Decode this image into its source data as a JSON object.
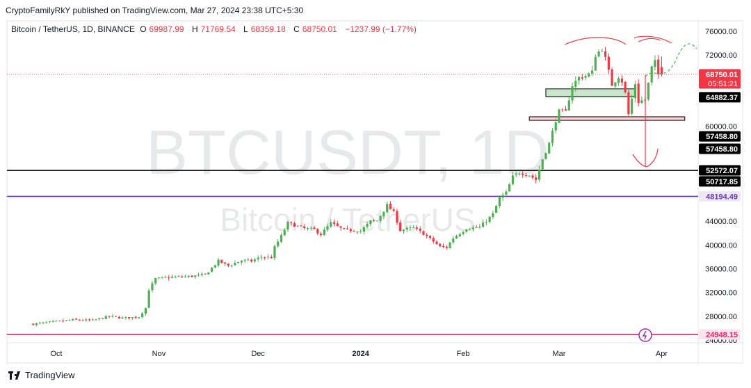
{
  "header": {
    "published": "CryptoFamilyRkY published on TradingView.com, Mar 27, 2024 23:38 UTC+5:30"
  },
  "legend": {
    "symbol": "Bitcoin / TetherUS, 1D, BINANCE",
    "o_label": "O",
    "o": "69987.99",
    "h_label": "H",
    "h": "71769.54",
    "l_label": "L",
    "l": "68359.18",
    "c_label": "C",
    "c": "68750.01",
    "change": "−1237.99 (−1.77%)"
  },
  "watermark": {
    "big": "BTCUSDT, 1D",
    "small": "Bitcoin / TetherUS"
  },
  "footer": {
    "brand": "TradingView"
  },
  "colors": {
    "up": "#26a69a",
    "candle_up": "#4caf50",
    "down": "#f23645",
    "purple": "#673ab7",
    "pink": "#e91e63",
    "black": "#000000"
  },
  "chart_data": {
    "type": "candlestick",
    "ylim": [
      22900,
      78000
    ],
    "y_ticks": [
      "76000.00",
      "72000.00",
      "60000.00",
      "44000.00",
      "40000.00",
      "36000.00",
      "32000.00",
      "28000.00",
      "24000.00"
    ],
    "x_ticks": [
      {
        "label": "Oct",
        "day": 0
      },
      {
        "label": "Nov",
        "day": 31
      },
      {
        "label": "Dec",
        "day": 61
      },
      {
        "label": "2024",
        "day": 92,
        "bold": true
      },
      {
        "label": "Feb",
        "day": 123
      },
      {
        "label": "Mar",
        "day": 152
      },
      {
        "label": "Apr",
        "day": 183
      }
    ],
    "price_tags": [
      {
        "price": 68750.01,
        "text": "68750.01",
        "text2": "05:51:21",
        "style": "red"
      },
      {
        "price": 64882.37,
        "text": "64882.37",
        "style": "black"
      },
      {
        "price": 58300,
        "text": "57458.80",
        "style": "black"
      },
      {
        "price": 56200,
        "text": "57458.80",
        "style": "black"
      },
      {
        "price": 52572.07,
        "text": "52572.07",
        "style": "black"
      },
      {
        "price": 50717.85,
        "text": "50717.85",
        "style": "black"
      },
      {
        "price": 48194.49,
        "text": "48194.49",
        "style": "purple"
      },
      {
        "price": 24948.15,
        "text": "24948.15",
        "style": "pink"
      }
    ],
    "hlines": [
      {
        "price": 52572.07,
        "color": "#000000",
        "width": 1.6
      },
      {
        "price": 48194.49,
        "color": "#673ab7",
        "width": 1.6
      },
      {
        "price": 24948.15,
        "color": "#e91e63",
        "width": 1.6
      }
    ],
    "last_price_line": 68750.01,
    "zones": [
      {
        "day_from": 148,
        "day_to": 175,
        "top": 66300,
        "bottom": 65000,
        "fill": "#c8e6c9",
        "stroke": "#000000"
      },
      {
        "day_from": 143,
        "day_to": 190,
        "top": 61600,
        "bottom": 61000,
        "fill": "#ffcdd2",
        "stroke": "#000000"
      }
    ],
    "path_anchors": [
      [
        -7,
        26700
      ],
      [
        0,
        27100
      ],
      [
        5,
        27400
      ],
      [
        11,
        27300
      ],
      [
        16,
        28000
      ],
      [
        20,
        27700
      ],
      [
        25,
        27900
      ],
      [
        27,
        29400
      ],
      [
        28,
        32500
      ],
      [
        30,
        34300
      ],
      [
        35,
        34600
      ],
      [
        40,
        34700
      ],
      [
        45,
        35000
      ],
      [
        49,
        37300
      ],
      [
        52,
        36500
      ],
      [
        56,
        37400
      ],
      [
        59,
        37300
      ],
      [
        62,
        38000
      ],
      [
        65,
        37900
      ],
      [
        66,
        39600
      ],
      [
        68,
        41500
      ],
      [
        70,
        43700
      ],
      [
        75,
        42800
      ],
      [
        78,
        42600
      ],
      [
        80,
        41800
      ],
      [
        83,
        43700
      ],
      [
        87,
        42500
      ],
      [
        90,
        42500
      ],
      [
        92,
        42300
      ],
      [
        95,
        44000
      ],
      [
        97,
        44100
      ],
      [
        100,
        46700
      ],
      [
        102,
        45500
      ],
      [
        104,
        42500
      ],
      [
        108,
        42900
      ],
      [
        111,
        41900
      ],
      [
        114,
        40600
      ],
      [
        116,
        39700
      ],
      [
        118,
        39600
      ],
      [
        120,
        41200
      ],
      [
        124,
        42800
      ],
      [
        128,
        43000
      ],
      [
        132,
        45200
      ],
      [
        134,
        47900
      ],
      [
        136,
        48800
      ],
      [
        138,
        51500
      ],
      [
        140,
        52200
      ],
      [
        143,
        51800
      ],
      [
        145,
        51000
      ],
      [
        147,
        54500
      ],
      [
        149,
        57100
      ],
      [
        151,
        61000
      ],
      [
        152,
        62500
      ],
      [
        154,
        62400
      ],
      [
        156,
        66900
      ],
      [
        158,
        68200
      ],
      [
        160,
        68500
      ],
      [
        162,
        69100
      ],
      [
        163,
        72000
      ],
      [
        165,
        73100
      ],
      [
        166,
        71400
      ],
      [
        168,
        67000
      ],
      [
        170,
        68400
      ],
      [
        171,
        67600
      ],
      [
        172,
        65600
      ],
      [
        173,
        62000
      ],
      [
        175,
        67200
      ],
      [
        176,
        64100
      ],
      [
        178,
        64500
      ],
      [
        180,
        69900
      ],
      [
        181,
        70800
      ],
      [
        182,
        68750
      ]
    ],
    "last_candle": {
      "day": 183,
      "open": 69987.99,
      "high": 71769.54,
      "low": 68359.18,
      "close": 68750.01
    }
  }
}
